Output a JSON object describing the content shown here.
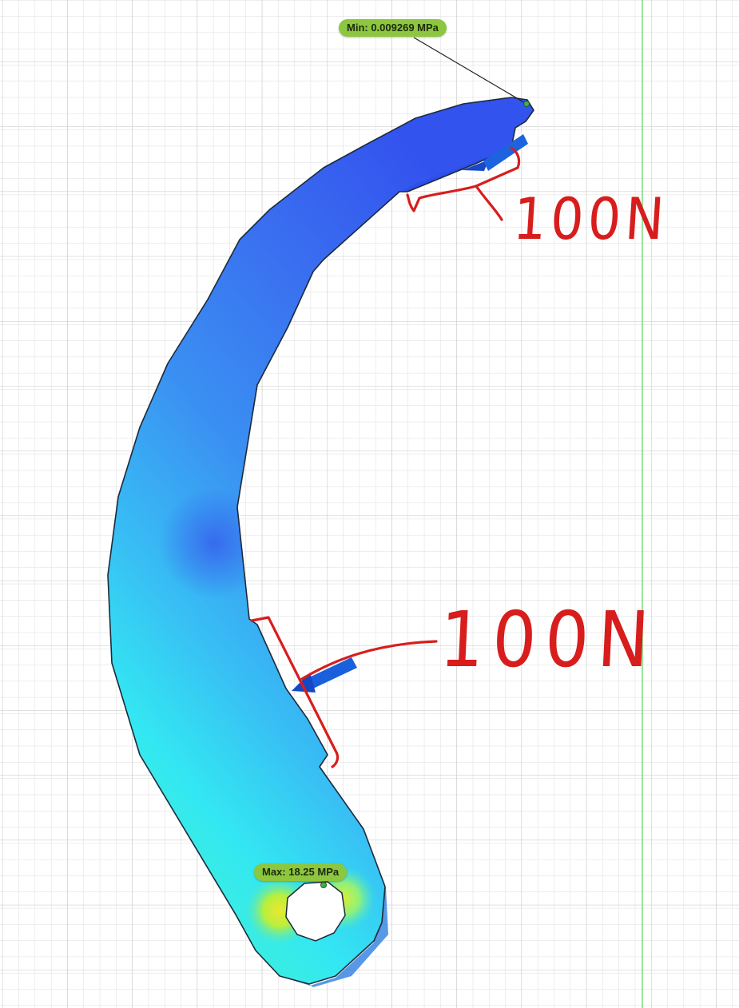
{
  "stress_probes": {
    "min_label": "Min: 0.009269 MPa",
    "max_label": "Max: 18.25 MPa"
  },
  "annotations": {
    "force_top": "100N",
    "force_bottom": "100N"
  },
  "colors": {
    "probe_label_bg": "#8dc63f",
    "annotation_red": "#d81d1d",
    "grid_line": "#d6d6d6",
    "grid_line_major": "#bdbdbd",
    "axis_green": "#7ddc7d",
    "stress_low": "#2f5cf0",
    "stress_mid": "#3cc8f5",
    "stress_high": "#e9e832",
    "load_arrow": "#1659d6"
  }
}
